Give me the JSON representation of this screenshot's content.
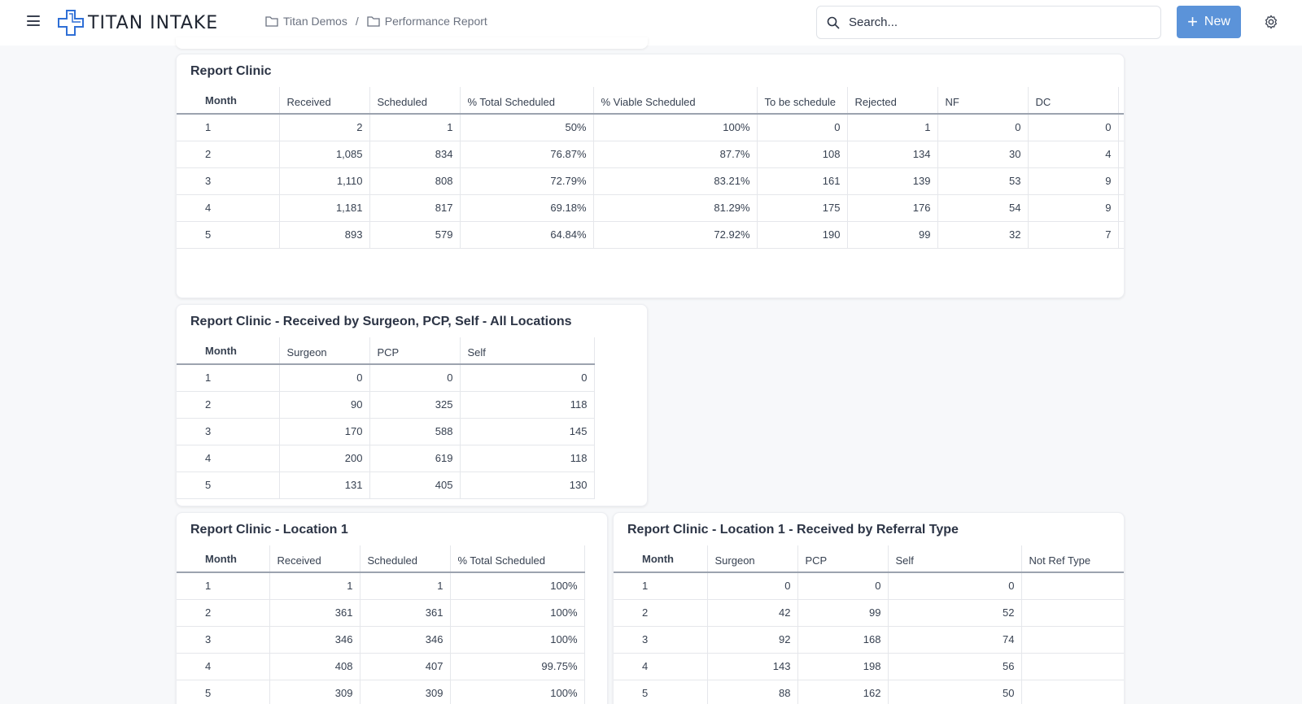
{
  "app": {
    "logo_text": "TITAN INTAKE"
  },
  "breadcrumb": [
    "Titan Demos",
    "Performance Report"
  ],
  "search": {
    "placeholder": "Search..."
  },
  "new_button": {
    "label": "New"
  },
  "colors": {
    "accent": "#5b93d9",
    "background": "#f7f8fa",
    "logo_blue": "#2f6fd6"
  },
  "report_clinic": {
    "title": "Report Clinic",
    "headers": [
      "Month",
      "Received",
      "Scheduled",
      "% Total Scheduled",
      "% Viable Scheduled",
      "To be schedule",
      "Rejected",
      "NF",
      "DC"
    ],
    "rows": [
      [
        "1",
        "2",
        "1",
        "50%",
        "100%",
        "0",
        "1",
        "0",
        "0"
      ],
      [
        "2",
        "1,085",
        "834",
        "76.87%",
        "87.7%",
        "108",
        "134",
        "30",
        "4"
      ],
      [
        "3",
        "1,110",
        "808",
        "72.79%",
        "83.21%",
        "161",
        "139",
        "53",
        "9"
      ],
      [
        "4",
        "1,181",
        "817",
        "69.18%",
        "81.29%",
        "175",
        "176",
        "54",
        "9"
      ],
      [
        "5",
        "893",
        "579",
        "64.84%",
        "72.92%",
        "190",
        "99",
        "32",
        "7"
      ]
    ]
  },
  "report_clinic_by_source": {
    "title": "Report Clinic - Received by Surgeon, PCP, Self - All Locations",
    "headers": [
      "Month",
      "Surgeon",
      "PCP",
      "Self"
    ],
    "rows": [
      [
        "1",
        "0",
        "0",
        "0"
      ],
      [
        "2",
        "90",
        "325",
        "118"
      ],
      [
        "3",
        "170",
        "588",
        "145"
      ],
      [
        "4",
        "200",
        "619",
        "118"
      ],
      [
        "5",
        "131",
        "405",
        "130"
      ]
    ]
  },
  "report_clinic_location1": {
    "title": "Report Clinic - Location 1",
    "headers": [
      "Month",
      "Received",
      "Scheduled",
      "% Total Scheduled"
    ],
    "rows": [
      [
        "1",
        "1",
        "1",
        "100%"
      ],
      [
        "2",
        "361",
        "361",
        "100%"
      ],
      [
        "3",
        "346",
        "346",
        "100%"
      ],
      [
        "4",
        "408",
        "407",
        "99.75%"
      ],
      [
        "5",
        "309",
        "309",
        "100%"
      ]
    ]
  },
  "report_clinic_location1_referral": {
    "title": "Report Clinic - Location 1 - Received by Referral Type",
    "headers": [
      "Month",
      "Surgeon",
      "PCP",
      "Self",
      "Not Ref Type"
    ],
    "rows": [
      [
        "1",
        "0",
        "0",
        "0",
        ""
      ],
      [
        "2",
        "42",
        "99",
        "52",
        ""
      ],
      [
        "3",
        "92",
        "168",
        "74",
        ""
      ],
      [
        "4",
        "143",
        "198",
        "56",
        ""
      ],
      [
        "5",
        "88",
        "162",
        "50",
        ""
      ]
    ]
  }
}
